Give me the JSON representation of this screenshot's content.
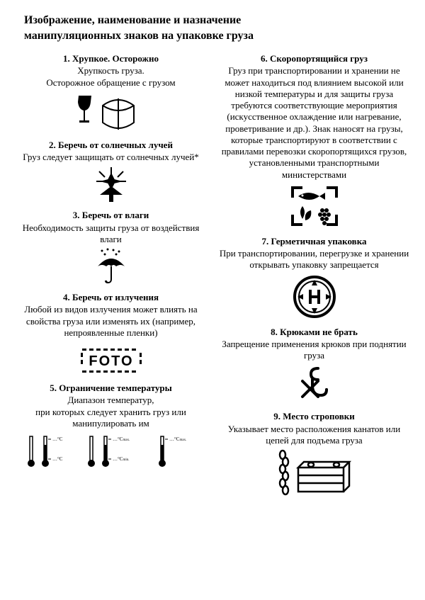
{
  "title_line1": "Изображение, наименование и назначение",
  "title_line2": "манипуляционных знаков на упаковке груза",
  "left": [
    {
      "title": "1.  Хрупкое. Осторожно",
      "desc": "Хрупкость груза.\nОсторожное обращение с грузом",
      "icon": "fragile"
    },
    {
      "title": "2.  Беречь от солнечных лучей",
      "desc": "Груз следует защищать от солнечных лучей*",
      "icon": "sunlight"
    },
    {
      "title": "3.  Беречь от влаги",
      "desc": "Необходимость защиты груза от воздействия влаги",
      "icon": "umbrella"
    },
    {
      "title": "4.  Беречь от излучения",
      "desc": "Любой из видов излучения может вли­ять на свойства груза или изменять их (например, непроявленные пленки)",
      "icon": "foto"
    },
    {
      "title": "5.  Ограничение температуры",
      "desc": "Диапазон температур,\nпри которых следует хранить груз или манипулировать им",
      "icon": "thermo"
    }
  ],
  "right": [
    {
      "title": "6.  Скоропортящийся груз",
      "desc": "Груз при транспортировании и хране­нии не может находиться под влиянием высокой или низкой температуры и для защиты груза требуются соответ­ствующие мероприятия (искусственное охлаждение или нагревание, проветри­вание и др.). Знак наносят на грузы, кото­рые транспортируют в соответствии с правилами перевозки скоропортящих­ся грузов, установленными транспорт­ными министерствами",
      "icon": "perishable"
    },
    {
      "title": "7.  Герметичная упаковка",
      "desc": "При транспортировании, перегруз­ке и хранении открывать упаковку запрещается",
      "icon": "hermetic"
    },
    {
      "title": "8.  Крюками не брать",
      "desc": "Запрещение применения крюков при поднятии груза",
      "icon": "nohook"
    },
    {
      "title": "9.  Место строповки",
      "desc": "Указывает место расположения кана­тов или цепей для подъема груза",
      "icon": "sling"
    }
  ],
  "thermo_labels": {
    "max": "…°C",
    "min": "…°C",
    "maxs": "max.",
    "mins": "min."
  }
}
